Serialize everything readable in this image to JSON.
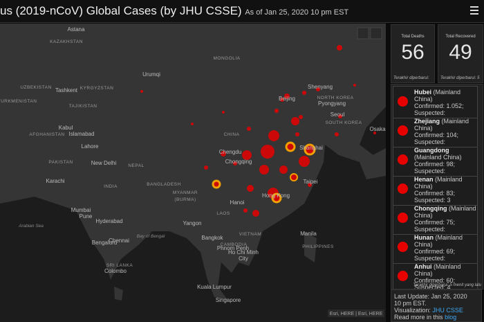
{
  "header": {
    "title": "us (2019-nCoV) Global Cases (by JHU CSSE)",
    "as_of": "As of Jan 25, 2020 10 pm EST"
  },
  "stats": [
    {
      "label": "Total Deaths",
      "value": "56",
      "footer": "Terakhir diperbarui:"
    },
    {
      "label": "Total Recovered",
      "value": "49",
      "footer": "Terakhir diperbarui: 5"
    }
  ],
  "list": {
    "items": [
      {
        "name": "Hubei",
        "region": "(Mainland China)",
        "confirmed": "Confirmed: 1.052;",
        "suspected": "Suspected:"
      },
      {
        "name": "Zhejiang",
        "region": "(Mainland China)",
        "confirmed": "Confirmed: 104;",
        "suspected": "Suspected:"
      },
      {
        "name": "Guangdong",
        "region": "(Mainland China)",
        "confirmed": "Confirmed: 98;",
        "suspected": "Suspected:"
      },
      {
        "name": "Henan",
        "region": "(Mainland China)",
        "confirmed": "Confirmed: 83;",
        "suspected": "Suspected: 3"
      },
      {
        "name": "Chongqing",
        "region": "(Mainland China)",
        "confirmed": "Confirmed: 75;",
        "suspected": "Suspected:"
      },
      {
        "name": "Hunan",
        "region": "(Mainland China)",
        "confirmed": "Confirmed: 69;",
        "suspected": "Suspected:"
      },
      {
        "name": "Anhui",
        "region": "(Mainland China)",
        "confirmed": "Confirmed: 60;",
        "suspected": "Suspected: 4"
      }
    ],
    "footer": "Terakhir diperbarui: 5 menit yang lalu"
  },
  "info": {
    "line1": "Last Update: Jan 25, 2020",
    "line2": "10 pm EST.",
    "viz_label": "Visualization:",
    "viz_link": "JHU CSSE",
    "more": "Read more in this",
    "more_link": "blog"
  },
  "map": {
    "attribution": "Esri, HERE | Esri, HERE",
    "labels": [
      "Astana",
      "KAZAKHSTAN",
      "MONGOLIA",
      "Urumqi",
      "UZBEKISTAN",
      "Tashkent",
      "KYRGYZSTAN",
      "TURKMENISTAN",
      "TAJIKISTAN",
      "Shenyang",
      "Beijing",
      "NORTH KOREA",
      "Pyongyang",
      "Seoul",
      "SOUTH KOREA",
      "Osaka",
      "Kabul",
      "Islamabad",
      "AFGHANISTAN",
      "Lahore",
      "CHINA",
      "Chengdu",
      "Chongqing",
      "Shanghai",
      "PAKISTAN",
      "New Delhi",
      "NEPAL",
      "Karachi",
      "INDIA",
      "BANGLADESH",
      "MYANMAR",
      "(BURMA)",
      "Taipei",
      "Hanoi",
      "Hong Kong",
      "Mumbai",
      "Pune",
      "Hyderabad",
      "LAOS",
      "Yangon",
      "Arabian Sea",
      "Bay of Bengal",
      "Manila",
      "VIETNAM",
      "Bangkok",
      "Bengaluru",
      "Chennai",
      "CAMBODIA",
      "Phnom Penh",
      "Ho Chi Minh",
      "City",
      "PHILIPPINES",
      "SRI LANKA",
      "Colombo",
      "Kuala Lumpur",
      "Singapore"
    ]
  }
}
